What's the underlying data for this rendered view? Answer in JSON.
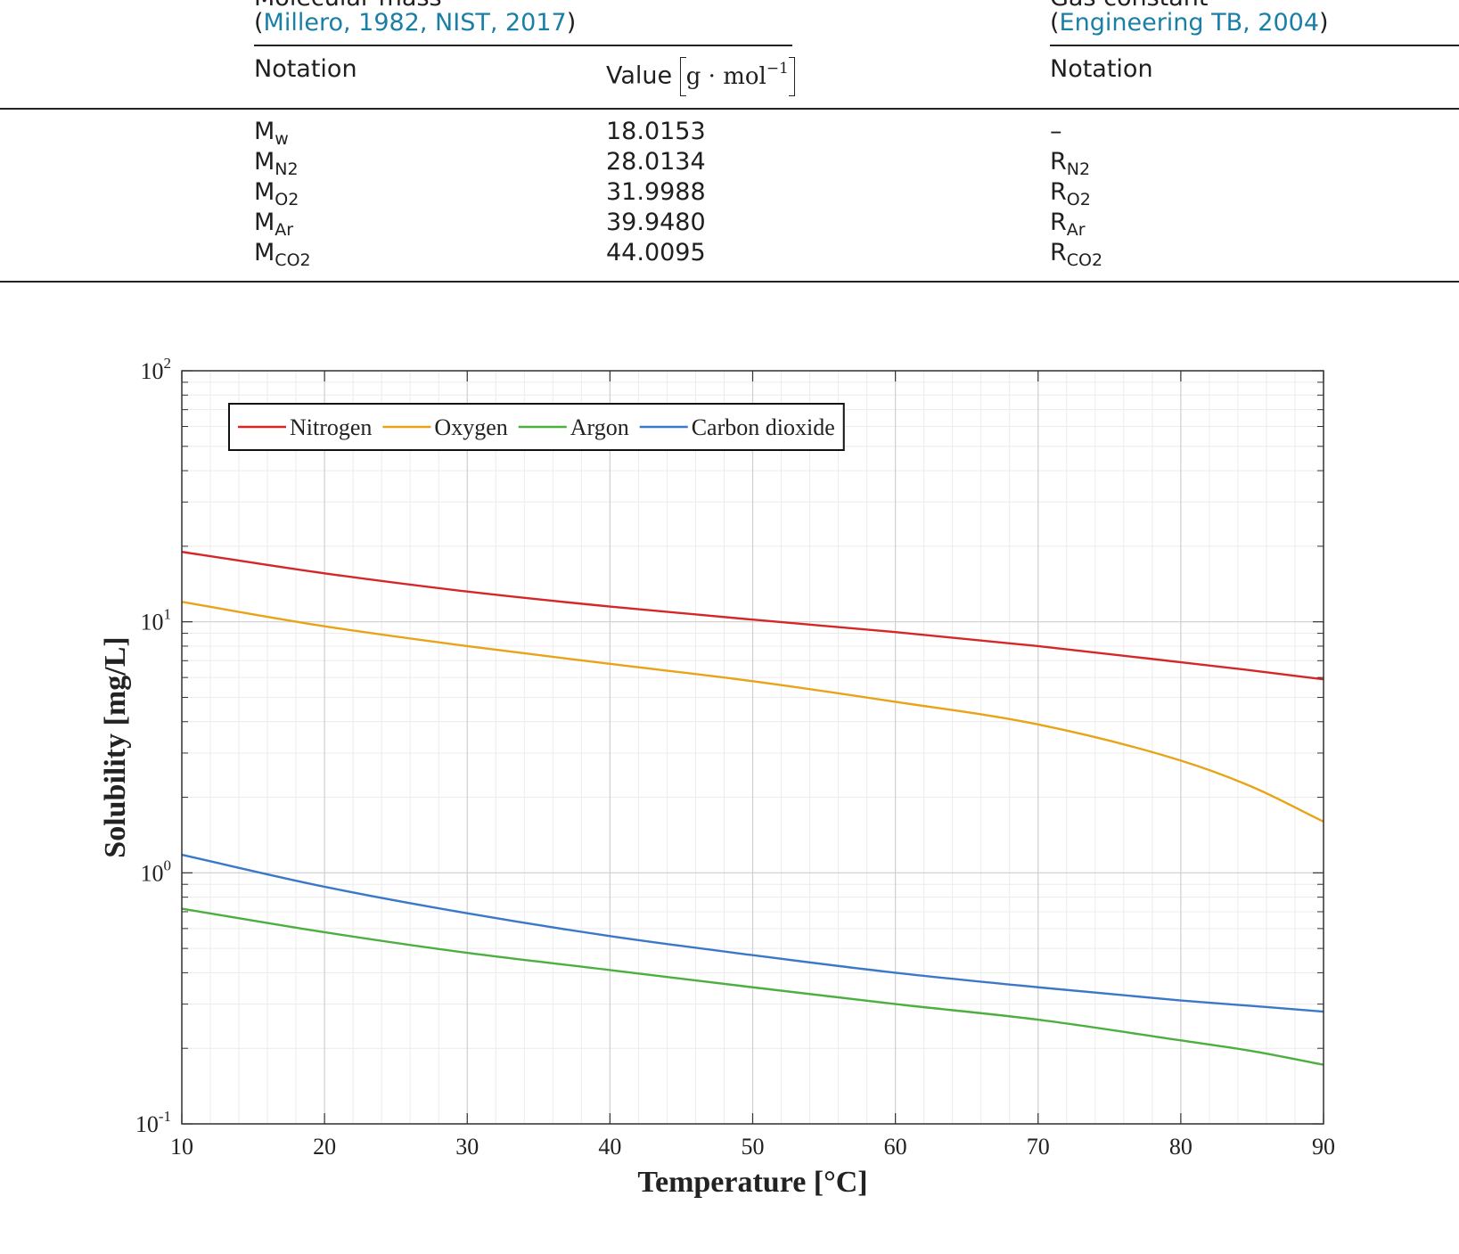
{
  "table": {
    "group_left": {
      "title": "Molecular mass",
      "cite_open": "(",
      "cite_text": "Millero, 1982, NIST, 2017",
      "cite_close": ")"
    },
    "group_right": {
      "title": "Gas constant",
      "cite_open": "(",
      "cite_text": "Engineering TB, 2004",
      "cite_close": ")"
    },
    "headers": {
      "notation_left": "Notation",
      "value": "Value",
      "value_unit_base": "g · mol",
      "value_unit_exp": "−1",
      "notation_right": "Notation"
    },
    "rows": [
      {
        "m_base": "M",
        "m_sub": "w",
        "value": "18.0153",
        "r_base": "–",
        "r_sub": ""
      },
      {
        "m_base": "M",
        "m_sub": "N2",
        "value": "28.0134",
        "r_base": "R",
        "r_sub": "N2"
      },
      {
        "m_base": "M",
        "m_sub": "O2",
        "value": "31.9988",
        "r_base": "R",
        "r_sub": "O2"
      },
      {
        "m_base": "M",
        "m_sub": "Ar",
        "value": "39.9480",
        "r_base": "R",
        "r_sub": "Ar"
      },
      {
        "m_base": "M",
        "m_sub": "CO2",
        "value": "44.0095",
        "r_base": "R",
        "r_sub": "CO2"
      }
    ]
  },
  "chart_data": {
    "type": "line",
    "title": "",
    "xlabel": "Temperature [°C]",
    "ylabel": "Solubility [mg/L]",
    "xlim": [
      10,
      90
    ],
    "ylim": [
      0.1,
      100
    ],
    "yscale": "log",
    "grid": true,
    "legend_position": "top-left",
    "x_ticks": [
      10,
      20,
      30,
      40,
      50,
      60,
      70,
      80,
      90
    ],
    "y_ticks": [
      {
        "value": 0.1,
        "base": "10",
        "exp": "-1"
      },
      {
        "value": 1,
        "base": "10",
        "exp": "0"
      },
      {
        "value": 10,
        "base": "10",
        "exp": "1"
      },
      {
        "value": 100,
        "base": "10",
        "exp": "2"
      }
    ],
    "x": [
      10,
      20,
      30,
      40,
      50,
      60,
      70,
      80,
      85,
      90
    ],
    "series": [
      {
        "name": "Nitrogen",
        "color": "#d62728",
        "values": [
          19.0,
          15.6,
          13.2,
          11.5,
          10.2,
          9.1,
          8.0,
          6.9,
          6.4,
          5.9
        ]
      },
      {
        "name": "Oxygen",
        "color": "#e8a317",
        "values": [
          12.0,
          9.6,
          8.0,
          6.8,
          5.8,
          4.8,
          3.9,
          2.8,
          2.2,
          1.6
        ]
      },
      {
        "name": "Argon",
        "color": "#4caf3f",
        "values": [
          0.72,
          0.58,
          0.48,
          0.41,
          0.35,
          0.3,
          0.26,
          0.215,
          0.195,
          0.172
        ]
      },
      {
        "name": "Carbon dioxide",
        "color": "#3b78c8",
        "values": [
          1.18,
          0.88,
          0.69,
          0.56,
          0.47,
          0.4,
          0.35,
          0.31,
          0.295,
          0.28
        ]
      }
    ]
  }
}
